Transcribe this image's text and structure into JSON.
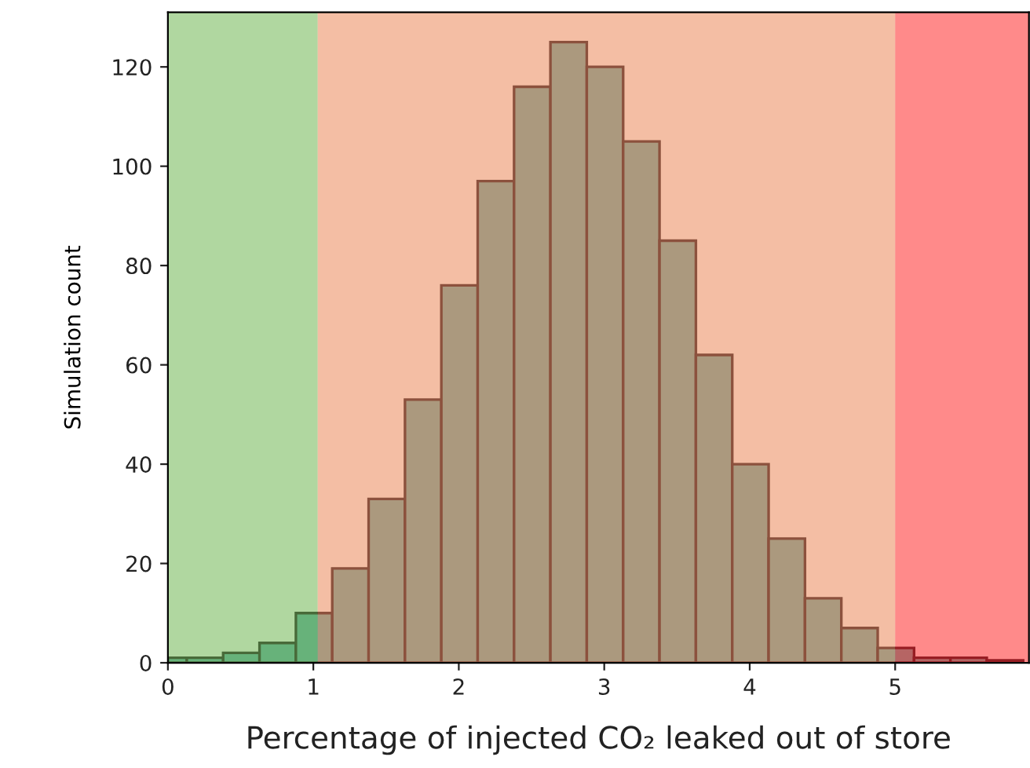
{
  "chart_data": {
    "type": "histogram",
    "xlabel": "Percentage of injected CO₂ leaked out of store",
    "ylabel": "Simulation count",
    "bins": [
      0,
      0.13,
      0.38,
      0.63,
      0.88,
      1.13,
      1.38,
      1.63,
      1.88,
      2.13,
      2.38,
      2.63,
      2.88,
      3.13,
      3.38,
      3.63,
      3.88,
      4.13,
      4.38,
      4.63,
      4.88,
      5.13,
      5.38,
      5.63,
      5.88
    ],
    "values": [
      1,
      1,
      2,
      4,
      10,
      19,
      33,
      53,
      76,
      97,
      116,
      125,
      120,
      105,
      85,
      62,
      40,
      25,
      13,
      7,
      3,
      1,
      1,
      0.5
    ],
    "color": "#6db5b3",
    "xlim": [
      0,
      5.92
    ],
    "xticks": [
      0,
      1,
      2,
      3,
      4,
      5
    ],
    "ylim": [
      0,
      131
    ],
    "yticks": [
      0,
      20,
      40,
      60,
      80,
      100,
      120
    ],
    "bands": [
      {
        "axis": "x",
        "from": 0,
        "to": 1.03,
        "color": "#61af41"
      },
      {
        "axis": "x",
        "from": 1.03,
        "to": 5,
        "color": "#e97d49"
      },
      {
        "axis": "x",
        "from": 5,
        "to": 5.92,
        "color": "#ff1515"
      }
    ],
    "grid": false,
    "legend": false
  }
}
